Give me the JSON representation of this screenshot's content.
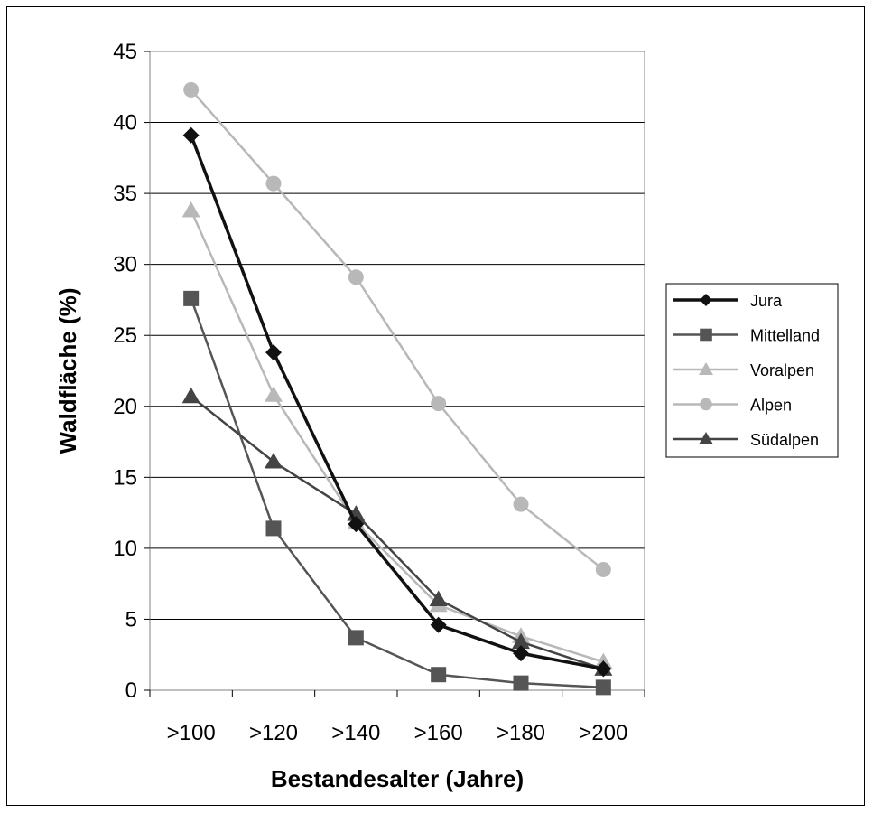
{
  "chart_data": {
    "type": "line",
    "title": "",
    "xlabel": "Bestandesalter (Jahre)",
    "ylabel": "Waldfläche (%)",
    "categories": [
      ">100",
      ">120",
      ">140",
      ">160",
      ">180",
      ">200"
    ],
    "ylim": [
      0,
      45
    ],
    "yticks": [
      0,
      5,
      10,
      15,
      20,
      25,
      30,
      35,
      40,
      45
    ],
    "grid": "horizontal",
    "legend": "right",
    "series": [
      {
        "name": "Jura",
        "color": "#111111",
        "marker": "diamond",
        "width": 3.5,
        "values": [
          39.1,
          23.8,
          11.7,
          4.6,
          2.6,
          1.5
        ]
      },
      {
        "name": "Mittelland",
        "color": "#555555",
        "marker": "square",
        "width": 2.5,
        "values": [
          27.6,
          11.4,
          3.7,
          1.1,
          0.5,
          0.2
        ]
      },
      {
        "name": "Voralpen",
        "color": "#b8b8b8",
        "marker": "triangle",
        "width": 2.5,
        "values": [
          33.8,
          20.8,
          11.8,
          6.0,
          3.8,
          2.0
        ]
      },
      {
        "name": "Alpen",
        "color": "#b8b8b8",
        "marker": "circle",
        "width": 2.5,
        "values": [
          42.3,
          35.7,
          29.1,
          20.2,
          13.1,
          8.5
        ]
      },
      {
        "name": "Südalpen",
        "color": "#444444",
        "marker": "triangle",
        "width": 2.5,
        "values": [
          20.7,
          16.1,
          12.4,
          6.4,
          3.4,
          1.5
        ]
      }
    ]
  }
}
